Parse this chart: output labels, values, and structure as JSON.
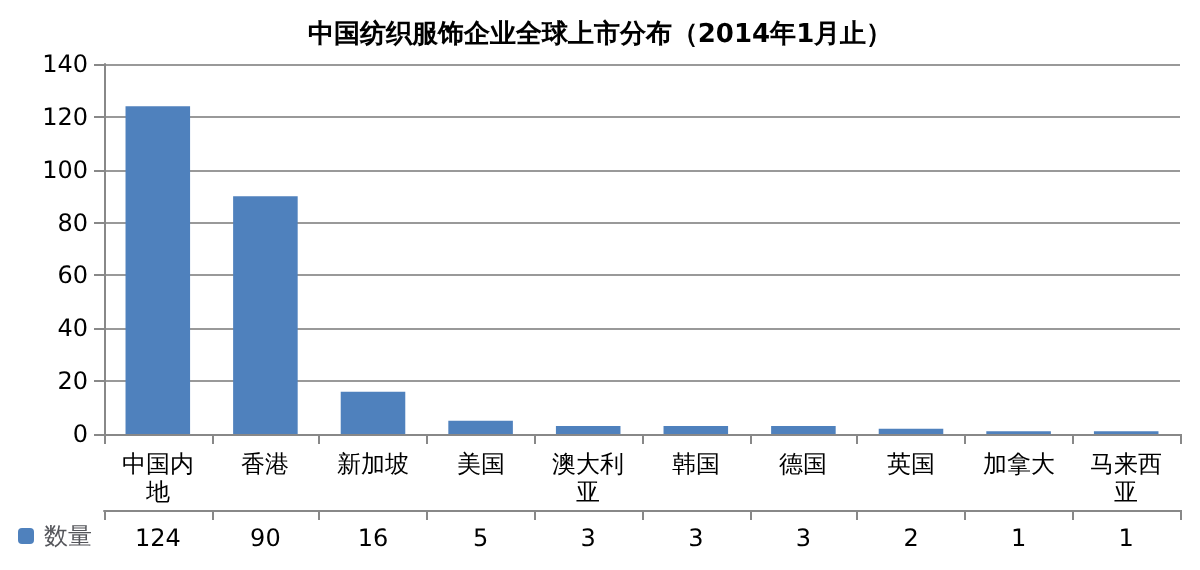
{
  "chart_data": {
    "type": "bar",
    "title": "中国纺织服饰企业全球上市分布（2014年1月止）",
    "categories": [
      "中国内地",
      "香港",
      "新加坡",
      "美国",
      "澳大利亚",
      "韩国",
      "德国",
      "英国",
      "加拿大",
      "马来西亚"
    ],
    "series": [
      {
        "name": "数量",
        "color": "#4f81bd",
        "values": [
          124,
          90,
          16,
          5,
          3,
          3,
          3,
          2,
          1,
          1
        ]
      }
    ],
    "ylim": [
      0,
      140
    ],
    "yticks": [
      0,
      20,
      40,
      60,
      80,
      100,
      120,
      140
    ],
    "grid": "y",
    "legend": "bottom left",
    "data_labels": true
  }
}
